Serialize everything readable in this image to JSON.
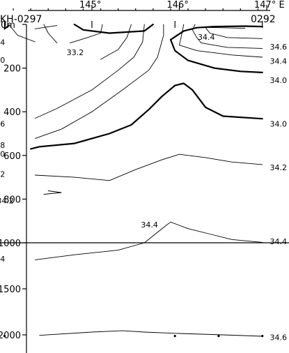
{
  "chart_data": {
    "type": "contour-section",
    "top_axis": {
      "ticks": [
        {
          "lon": 145,
          "label": "145°"
        },
        {
          "lon": 146,
          "label": "146°"
        },
        {
          "lon": 147,
          "label": "147° E"
        }
      ],
      "range": [
        143.2,
        147.1
      ]
    },
    "station_labels": {
      "left": "KH-0297",
      "right": "0292"
    },
    "depth_axis": {
      "upper": {
        "range": [
          0,
          1000
        ],
        "ticks": [
          {
            "d": 0,
            "label": "0m"
          },
          {
            "d": 200,
            "label": "200"
          },
          {
            "d": 400,
            "label": "400"
          },
          {
            "d": 600,
            "label": "600"
          },
          {
            "d": 800,
            "label": "800"
          },
          {
            "d": 1000,
            "label": "1000"
          }
        ]
      },
      "lower": {
        "range": [
          1000,
          2200
        ],
        "ticks": [
          {
            "d": 1500,
            "label": "1500"
          },
          {
            "d": 2000,
            "label": "2000"
          }
        ]
      }
    },
    "stations": [
      144.0,
      145.0,
      145.95,
      146.95
    ],
    "station_top_marks": [
      144.0,
      145.0,
      145.95,
      146.95
    ],
    "bottom_dots": [
      {
        "lon": 144.0,
        "d": 2005
      },
      {
        "lon": 145.95,
        "d": 2005
      },
      {
        "lon": 146.45,
        "d": 2005
      },
      {
        "lon": 146.95,
        "d": 2005
      }
    ],
    "contours": [
      {
        "value": 34.0,
        "major": true,
        "points": [
          [
            146.95,
            10
          ],
          [
            146.75,
            8
          ],
          [
            146.4,
            10
          ],
          [
            146.2,
            15
          ],
          [
            146.05,
            30
          ],
          [
            145.9,
            70
          ],
          [
            145.95,
            120
          ],
          [
            146.1,
            165
          ],
          [
            146.4,
            200
          ],
          [
            146.7,
            215
          ],
          [
            146.95,
            220
          ]
        ]
      },
      {
        "value": 34.0,
        "major": true,
        "points": [
          [
            144.3,
            570
          ],
          [
            144.4,
            560
          ],
          [
            144.8,
            545
          ],
          [
            145.2,
            500
          ],
          [
            145.45,
            460
          ],
          [
            145.65,
            390
          ],
          [
            145.8,
            330
          ],
          [
            145.95,
            280
          ],
          [
            146.05,
            270
          ],
          [
            146.15,
            300
          ],
          [
            146.3,
            380
          ],
          [
            146.5,
            420
          ],
          [
            146.95,
            432
          ]
        ]
      },
      {
        "value": 34.0,
        "major": true,
        "points": [
          [
            144.0,
            20
          ],
          [
            144.05,
            5
          ]
        ]
      },
      {
        "value": 34.0,
        "major": true,
        "points": [
          [
            144.8,
            0
          ],
          [
            144.9,
            25
          ],
          [
            145.2,
            40
          ],
          [
            145.6,
            30
          ],
          [
            145.7,
            0
          ]
        ]
      },
      {
        "value": 33.8,
        "major": false,
        "points": [
          [
            144.35,
            522
          ],
          [
            144.65,
            480
          ],
          [
            145.0,
            400
          ],
          [
            145.35,
            300
          ],
          [
            145.65,
            210
          ],
          [
            145.75,
            150
          ],
          [
            145.82,
            50
          ],
          [
            145.82,
            0
          ]
        ]
      },
      {
        "value": 33.6,
        "major": false,
        "points": [
          [
            144.35,
            430
          ],
          [
            144.6,
            385
          ],
          [
            145.0,
            300
          ],
          [
            145.3,
            210
          ],
          [
            145.48,
            150
          ],
          [
            145.58,
            80
          ],
          [
            145.6,
            0
          ]
        ]
      },
      {
        "value": 33.4,
        "major": false,
        "points": [
          [
            145.1,
            160
          ],
          [
            145.3,
            115
          ],
          [
            145.4,
            60
          ],
          [
            145.45,
            0
          ]
        ]
      },
      {
        "value": 33.2,
        "major": false,
        "points": [
          [
            144.75,
            85
          ],
          [
            144.95,
            60
          ],
          [
            145.1,
            40
          ],
          [
            145.12,
            0
          ]
        ]
      },
      {
        "value": 34.2,
        "major": false,
        "points": [
          [
            144.35,
            80
          ],
          [
            144.15,
            50
          ],
          [
            144.05,
            0
          ]
        ]
      },
      {
        "value": 34.2,
        "major": false,
        "points": [
          [
            144.6,
            85
          ],
          [
            144.5,
            40
          ],
          [
            144.45,
            0
          ]
        ]
      },
      {
        "value": 34.4,
        "major": false,
        "points": [
          [
            144.35,
            20
          ],
          [
            144.6,
            5
          ]
        ]
      },
      {
        "value": 34.2,
        "major": false,
        "points": [
          [
            146.95,
            150
          ],
          [
            146.6,
            140
          ],
          [
            146.2,
            120
          ],
          [
            146.0,
            95
          ],
          [
            146.02,
            60
          ],
          [
            146.05,
            0
          ]
        ]
      },
      {
        "value": 34.4,
        "major": false,
        "points": [
          [
            146.95,
            110
          ],
          [
            146.55,
            105
          ],
          [
            146.25,
            85
          ],
          [
            146.2,
            60
          ],
          [
            146.15,
            25
          ],
          [
            146.18,
            0
          ]
        ]
      },
      {
        "value": 34.6,
        "major": false,
        "points": [
          [
            146.95,
            65
          ],
          [
            146.55,
            60
          ],
          [
            146.35,
            40
          ],
          [
            146.3,
            15
          ]
        ]
      },
      {
        "value": 34.4,
        "major": false,
        "points": [
          [
            146.2,
            13
          ],
          [
            146.45,
            15
          ],
          [
            146.75,
            18
          ]
        ]
      },
      {
        "value": 34.2,
        "major": false,
        "points": [
          [
            144.35,
            690
          ],
          [
            144.8,
            700
          ],
          [
            145.2,
            715
          ],
          [
            145.5,
            665
          ],
          [
            145.8,
            620
          ],
          [
            146.0,
            595
          ],
          [
            146.3,
            610
          ],
          [
            146.6,
            630
          ],
          [
            146.95,
            642
          ]
        ]
      },
      {
        "value": 34.2,
        "major": false,
        "points": [
          [
            144.5,
            762
          ],
          [
            144.65,
            770
          ],
          [
            144.45,
            778
          ]
        ]
      },
      {
        "value": 34.4,
        "major": false,
        "points": [
          [
            145.6,
            1000
          ],
          [
            145.85,
            920
          ],
          [
            145.9,
            905
          ],
          [
            146.1,
            935
          ],
          [
            146.35,
            960
          ],
          [
            146.6,
            985
          ],
          [
            146.95,
            998
          ]
        ]
      },
      {
        "value": 34.4,
        "major": false,
        "points": [
          [
            144.35,
            1185
          ],
          [
            144.8,
            1130
          ],
          [
            145.3,
            1080
          ],
          [
            145.6,
            1000
          ]
        ]
      },
      {
        "value": 34.6,
        "major": false,
        "points": [
          [
            144.4,
            2005
          ],
          [
            145.0,
            1970
          ],
          [
            145.35,
            1955
          ],
          [
            145.6,
            1970
          ],
          [
            146.0,
            1985
          ],
          [
            146.5,
            2000
          ],
          [
            146.95,
            2015
          ]
        ]
      }
    ],
    "labels": [
      {
        "text": "34.4",
        "lon": 144.05,
        "d": 95
      },
      {
        "text": "34.0",
        "lon": 144.05,
        "d": 175
      },
      {
        "text": "33.2",
        "lon": 144.95,
        "d": 140
      },
      {
        "text": "34.4",
        "lon": 146.45,
        "d": 70
      },
      {
        "text": "34.6",
        "lon": 146.95,
        "d": 115
      },
      {
        "text": "34.4",
        "lon": 146.95,
        "d": 180
      },
      {
        "text": "34.0",
        "lon": 146.95,
        "d": 268
      },
      {
        "text": "33.6",
        "lon": 144.05,
        "d": 468
      },
      {
        "text": "34.0",
        "lon": 146.95,
        "d": 468
      },
      {
        "text": "33.8",
        "lon": 144.05,
        "d": 565
      },
      {
        "text": "34.0",
        "lon": 144.05,
        "d": 605
      },
      {
        "text": "34.2",
        "lon": 144.05,
        "d": 698
      },
      {
        "text": "34.2",
        "lon": 146.95,
        "d": 668
      },
      {
        "text": "34.2",
        "lon": 144.15,
        "d": 820
      },
      {
        "text": "34.4",
        "lon": 145.8,
        "d": 930
      },
      {
        "text": "34.4",
        "lon": 146.95,
        "d": 1015
      },
      {
        "text": "34.4",
        "lon": 144.05,
        "d": 1205
      },
      {
        "text": "34.6",
        "lon": 146.95,
        "d": 2055
      }
    ]
  }
}
